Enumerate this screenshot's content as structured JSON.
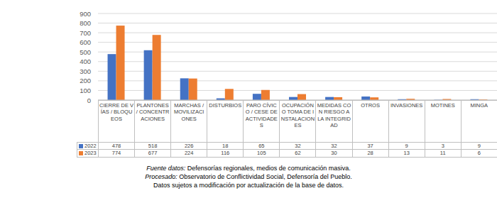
{
  "chart_data": {
    "type": "bar",
    "categories": [
      "CIERRE DE VÍAS / BLOQUEOS",
      "PLANTONES / CONCENTRACIONES",
      "MARCHAS / MOVILIZACIONES",
      "DISTURBIOS",
      "PARO CÍVICO / CESE DE ACTIVIDADES",
      "OCUPACIÓN O TOMA DE INSTALACIONES",
      "MEDIDAS CON RIESGO A LA INTEGRIDAD",
      "OTROS",
      "INVASIONES",
      "MOTINES",
      "MINGA"
    ],
    "series": [
      {
        "name": "2022",
        "color": "#4472c4",
        "values": [
          478,
          518,
          226,
          18,
          65,
          32,
          32,
          37,
          9,
          3,
          9
        ]
      },
      {
        "name": "2023",
        "color": "#ed7d31",
        "values": [
          774,
          677,
          224,
          116,
          105,
          62,
          30,
          28,
          13,
          11,
          6
        ]
      }
    ],
    "ylim": [
      0,
      900
    ],
    "yticks": [
      0,
      100,
      200,
      300,
      400,
      500,
      600,
      700,
      800,
      900
    ],
    "grid": true,
    "notes": [
      "Fuente datos: Defensorías regionales, medios de comunicación masiva.",
      "Procesado: Observatorio de Conflictividad Social, Defensoría del Pueblo.",
      "Datos sujetos a modificación por actualización de la base de datos."
    ]
  }
}
